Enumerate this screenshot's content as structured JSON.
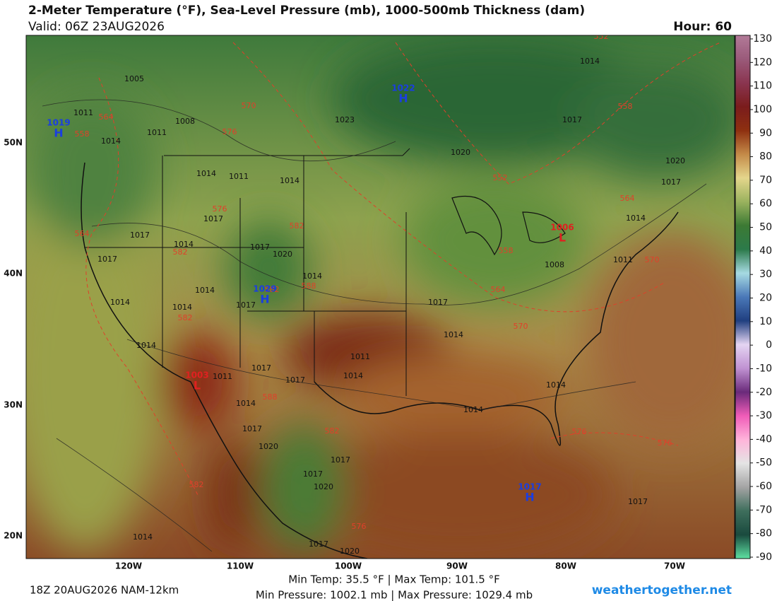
{
  "header": {
    "title": "2-Meter Temperature (°F), Sea-Level Pressure (mb), 1000-500mb Thickness (dam)",
    "valid": "Valid: 06Z 23AUG2026",
    "hour": "Hour: 60"
  },
  "map": {
    "lat_labels": [
      "50N",
      "40N",
      "30N",
      "20N"
    ],
    "lon_labels": [
      "120W",
      "110W",
      "100W",
      "90W",
      "80W",
      "70W"
    ],
    "pressure_labels": [
      "1005",
      "1011",
      "1008",
      "1011",
      "1014",
      "1014",
      "1011",
      "1014",
      "1017",
      "1017",
      "1014",
      "1017",
      "1017",
      "1020",
      "1014",
      "1014",
      "1014",
      "1014",
      "1017",
      "1014",
      "1011",
      "1017",
      "1017",
      "1014",
      "1011",
      "1014",
      "1017",
      "1020",
      "1017",
      "1020",
      "1017",
      "1017",
      "1020",
      "1014",
      "1017",
      "1014",
      "1014",
      "1014",
      "1008",
      "1011",
      "1014",
      "1017",
      "1020",
      "1014",
      "1017",
      "1020",
      "1023",
      "1017"
    ],
    "thickness_labels": [
      "564",
      "558",
      "570",
      "576",
      "576",
      "582",
      "582",
      "564",
      "588",
      "582",
      "582",
      "588",
      "582",
      "582",
      "576",
      "552",
      "558",
      "564",
      "570",
      "558",
      "564",
      "570",
      "576",
      "576",
      "552"
    ],
    "centers": [
      {
        "kind": "H",
        "label": "1019"
      },
      {
        "kind": "H",
        "label": "1022"
      },
      {
        "kind": "H",
        "label": "1029"
      },
      {
        "kind": "H",
        "label": "1017"
      },
      {
        "kind": "L",
        "label": "1006"
      },
      {
        "kind": "L",
        "label": "1003"
      }
    ]
  },
  "colorbar": {
    "ticks": [
      130,
      120,
      110,
      100,
      90,
      80,
      70,
      60,
      50,
      40,
      30,
      20,
      10,
      0,
      -10,
      -20,
      -30,
      -40,
      -50,
      -60,
      -70,
      -80,
      -90
    ],
    "colors": [
      "#b27a98",
      "#9a5a7a",
      "#8a3550",
      "#7a1c1c",
      "#8e3010",
      "#c48a48",
      "#e4d68c",
      "#9ab25e",
      "#3c7a34",
      "#2c7a4a",
      "#a6dae2",
      "#4a78b8",
      "#203f80",
      "#e4d4f2",
      "#c092d2",
      "#6a2a7a",
      "#f05cb8",
      "#ffb4da",
      "#e4e4e4",
      "#a4a4a4",
      "#3e6e5c",
      "#1a4a3e",
      "#5ee0a2"
    ]
  },
  "footer": {
    "run": "18Z 20AUG2026 NAM-12km",
    "temp_range": "Min Temp:  35.5 °F | Max Temp: 101.5 °F",
    "pressure_range": "Min Pressure: 1002.1 mb | Max Pressure: 1029.4 mb",
    "site": "weathertogether.net"
  }
}
